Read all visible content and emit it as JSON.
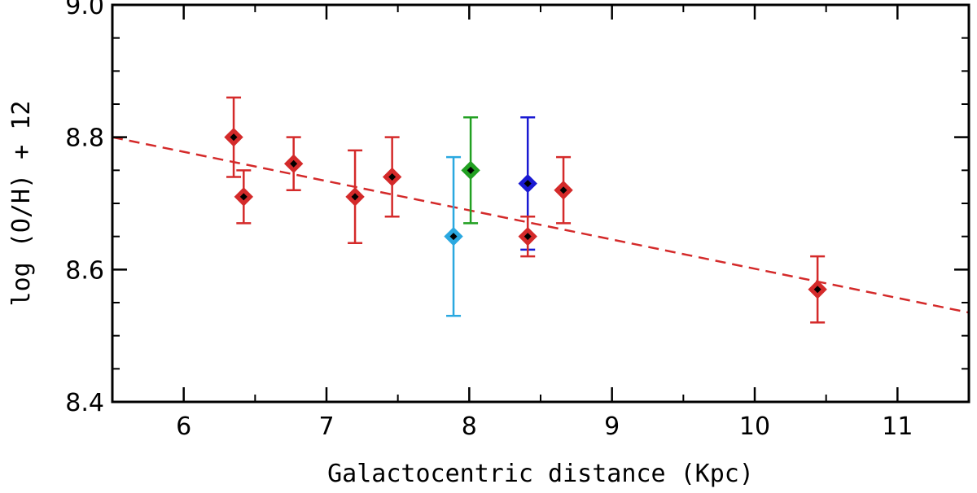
{
  "chart_data": {
    "type": "scatter",
    "title": "",
    "xlabel": "Galactocentric distance (Kpc)",
    "ylabel": "log (O/H) + 12",
    "xlim": [
      5.5,
      11.5
    ],
    "ylim": [
      8.4,
      9.0
    ],
    "xticks": [
      6,
      7,
      8,
      9,
      10,
      11
    ],
    "yticks": [
      8.4,
      8.6,
      8.8,
      9.0
    ],
    "xtick_labels": [
      "6",
      "7",
      "8",
      "9",
      "10",
      "11"
    ],
    "ytick_labels": [
      "8.4",
      "8.6",
      "8.8",
      "9.0"
    ],
    "grid": false,
    "colors": {
      "red": "#d42a2a",
      "green": "#22a022",
      "blue": "#1a1ad2",
      "lightblue": "#2aa8e0",
      "marker_center": "#000000",
      "axis": "#000000"
    },
    "points": [
      {
        "x": 6.35,
        "y": 8.8,
        "yerr_low": 8.74,
        "yerr_high": 8.86,
        "color": "red"
      },
      {
        "x": 6.42,
        "y": 8.71,
        "yerr_low": 8.67,
        "yerr_high": 8.75,
        "color": "red"
      },
      {
        "x": 6.77,
        "y": 8.76,
        "yerr_low": 8.72,
        "yerr_high": 8.8,
        "color": "red"
      },
      {
        "x": 7.2,
        "y": 8.71,
        "yerr_low": 8.64,
        "yerr_high": 8.78,
        "color": "red"
      },
      {
        "x": 7.46,
        "y": 8.74,
        "yerr_low": 8.68,
        "yerr_high": 8.8,
        "color": "red"
      },
      {
        "x": 7.89,
        "y": 8.65,
        "yerr_low": 8.53,
        "yerr_high": 8.77,
        "color": "lightblue"
      },
      {
        "x": 8.01,
        "y": 8.75,
        "yerr_low": 8.67,
        "yerr_high": 8.83,
        "color": "green"
      },
      {
        "x": 8.41,
        "y": 8.73,
        "yerr_low": 8.63,
        "yerr_high": 8.83,
        "color": "blue"
      },
      {
        "x": 8.41,
        "y": 8.65,
        "yerr_low": 8.62,
        "yerr_high": 8.68,
        "color": "red"
      },
      {
        "x": 8.66,
        "y": 8.72,
        "yerr_low": 8.67,
        "yerr_high": 8.77,
        "color": "red"
      },
      {
        "x": 10.44,
        "y": 8.57,
        "yerr_low": 8.52,
        "yerr_high": 8.62,
        "color": "red"
      }
    ],
    "fit_line": {
      "style": "dashed",
      "color": "red",
      "x": [
        5.5,
        11.5
      ],
      "y": [
        8.8,
        8.535
      ]
    }
  }
}
